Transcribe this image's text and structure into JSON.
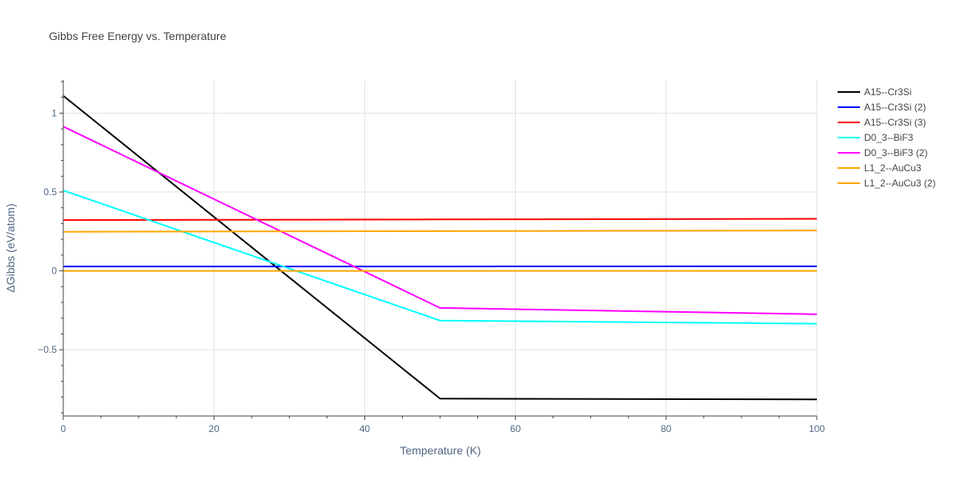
{
  "chart_data": {
    "type": "line",
    "title": "Gibbs Free Energy vs. Temperature",
    "xlabel": "Temperature (K)",
    "ylabel": "ΔGibbs (eV/atom)",
    "xlim": [
      0,
      100
    ],
    "ylim": [
      -0.92,
      1.21
    ],
    "x_ticks": [
      0,
      20,
      40,
      60,
      80,
      100
    ],
    "x_tick_labels": [
      "0",
      "20",
      "40",
      "60",
      "80",
      "100"
    ],
    "x_minor_ticks": [
      5,
      10,
      15,
      25,
      30,
      35,
      45,
      50,
      55,
      65,
      70,
      75,
      85,
      90,
      95
    ],
    "y_ticks": [
      -0.5,
      0,
      0.5,
      1
    ],
    "y_tick_labels": [
      "−0.5",
      "0",
      "0.5",
      "1"
    ],
    "y_minor_ticks": [
      -0.9,
      -0.8,
      -0.7,
      -0.6,
      -0.4,
      -0.3,
      -0.2,
      -0.1,
      0.1,
      0.2,
      0.3,
      0.4,
      0.6,
      0.7,
      0.8,
      0.9,
      1.1,
      1.2
    ],
    "grid": true,
    "legend_position": "right",
    "series": [
      {
        "name": "A15--Cr3Si",
        "color": "#000000",
        "x": [
          0,
          50,
          100
        ],
        "y": [
          1.11,
          -0.81,
          -0.815
        ]
      },
      {
        "name": "A15--Cr3Si (2)",
        "color": "#0000ff",
        "x": [
          0,
          50,
          100
        ],
        "y": [
          0.028,
          0.028,
          0.029
        ]
      },
      {
        "name": "A15--Cr3Si (3)",
        "color": "#ff0000",
        "x": [
          0,
          50,
          100
        ],
        "y": [
          0.322,
          0.326,
          0.33
        ]
      },
      {
        "name": "D0_3--BiF3",
        "color": "#00ffff",
        "x": [
          0,
          50,
          100
        ],
        "y": [
          0.51,
          -0.315,
          -0.335
        ]
      },
      {
        "name": "D0_3--BiF3 (2)",
        "color": "#ff00ff",
        "x": [
          0,
          50,
          100
        ],
        "y": [
          0.915,
          -0.235,
          -0.275
        ]
      },
      {
        "name": "L1_2--AuCu3",
        "color": "#ffa500",
        "x": [
          0,
          50,
          100
        ],
        "y": [
          0.248,
          0.252,
          0.256
        ]
      },
      {
        "name": "L1_2--AuCu3 (2)",
        "color": "#ffa500",
        "x": [
          0,
          50,
          100
        ],
        "y": [
          0.0,
          0.0,
          0.0
        ]
      }
    ]
  }
}
